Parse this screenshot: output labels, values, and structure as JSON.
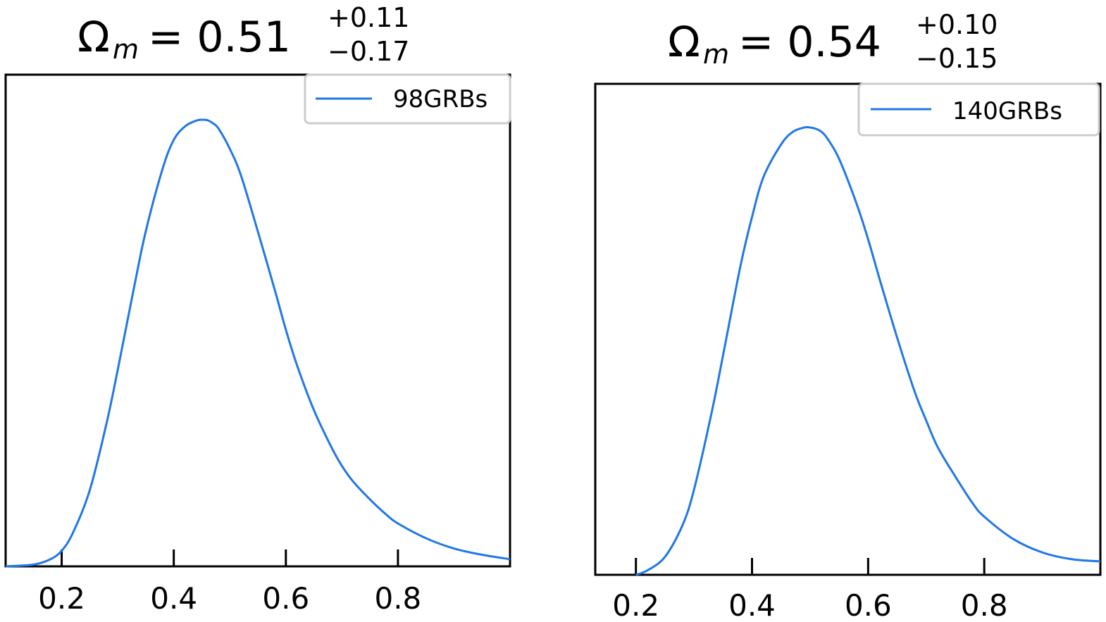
{
  "chart_data": [
    {
      "type": "line",
      "title": {
        "symbol": "Ω",
        "subscript": "m",
        "equals": "= 0.51",
        "upper": "+0.11",
        "lower": "−0.17"
      },
      "xlim": [
        0.1,
        1.0
      ],
      "ylim": [
        0,
        1.0
      ],
      "xticks": [
        0.2,
        0.4,
        0.6,
        0.8
      ],
      "xtick_labels": [
        "0.2",
        "0.4",
        "0.6",
        "0.8"
      ],
      "legend": "top-right",
      "series": [
        {
          "name": "98GRBs",
          "color": "#1f77e8",
          "x": [
            0.1,
            0.15,
            0.18,
            0.2,
            0.22,
            0.25,
            0.28,
            0.3,
            0.33,
            0.35,
            0.38,
            0.4,
            0.42,
            0.44,
            0.45,
            0.46,
            0.47,
            0.48,
            0.5,
            0.52,
            0.55,
            0.58,
            0.6,
            0.62,
            0.65,
            0.68,
            0.7,
            0.72,
            0.75,
            0.78,
            0.8,
            0.85,
            0.9,
            0.95,
            1.0
          ],
          "y": [
            0.0,
            0.004,
            0.016,
            0.035,
            0.075,
            0.17,
            0.32,
            0.44,
            0.63,
            0.75,
            0.89,
            0.955,
            0.985,
            0.998,
            1.0,
            0.999,
            0.992,
            0.98,
            0.935,
            0.875,
            0.75,
            0.62,
            0.53,
            0.45,
            0.35,
            0.27,
            0.225,
            0.19,
            0.15,
            0.115,
            0.096,
            0.063,
            0.04,
            0.026,
            0.016
          ]
        }
      ]
    },
    {
      "type": "line",
      "title": {
        "symbol": "Ω",
        "subscript": "m",
        "equals": "= 0.54",
        "upper": "+0.10",
        "lower": "−0.15"
      },
      "xlim": [
        0.13,
        1.0
      ],
      "ylim": [
        0,
        1.0
      ],
      "xticks": [
        0.2,
        0.4,
        0.6,
        0.8
      ],
      "xtick_labels": [
        "0.2",
        "0.4",
        "0.6",
        "0.8"
      ],
      "legend": "top-right",
      "series": [
        {
          "name": "140GRBs",
          "color": "#1f77e8",
          "x": [
            0.2,
            0.22,
            0.25,
            0.28,
            0.3,
            0.33,
            0.35,
            0.38,
            0.4,
            0.42,
            0.45,
            0.47,
            0.49,
            0.5,
            0.51,
            0.52,
            0.53,
            0.55,
            0.58,
            0.6,
            0.62,
            0.65,
            0.68,
            0.7,
            0.72,
            0.75,
            0.78,
            0.8,
            0.85,
            0.9,
            0.95,
            1.0
          ],
          "y": [
            0.0,
            0.01,
            0.04,
            0.11,
            0.19,
            0.36,
            0.49,
            0.69,
            0.8,
            0.89,
            0.962,
            0.99,
            1.0,
            1.0,
            0.997,
            0.99,
            0.975,
            0.93,
            0.83,
            0.75,
            0.66,
            0.53,
            0.41,
            0.345,
            0.285,
            0.22,
            0.16,
            0.13,
            0.08,
            0.05,
            0.035,
            0.03
          ]
        }
      ]
    }
  ]
}
